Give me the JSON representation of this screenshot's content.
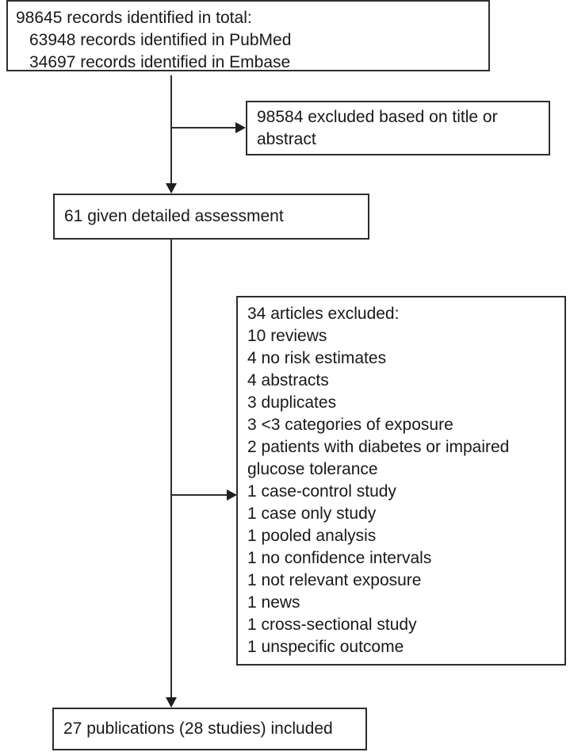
{
  "colors": {
    "background": "#fefefe",
    "box_fill": "#ffffff",
    "box_border": "#2e2e2e",
    "text": "#191919",
    "connector": "#2e2e2e"
  },
  "boxes": {
    "records_identified": {
      "lines": [
        "98645 records identified in total:",
        "63948 records identified in PubMed",
        "34697 records identified in Embase"
      ]
    },
    "excluded_title_abstract": {
      "text": "98584 excluded based on title or abstract"
    },
    "detailed_assessment": {
      "text": "61 given detailed assessment"
    },
    "articles_excluded": {
      "lines": [
        "34 articles excluded:",
        "10 reviews",
        "4 no risk estimates",
        "4 abstracts",
        "3 duplicates",
        "3 <3 categories of exposure",
        "2 patients with diabetes or impaired",
        "glucose tolerance",
        "1 case-control study",
        "1 case only study",
        "1 pooled analysis",
        "1 no confidence intervals",
        "1 not relevant exposure",
        "1 news",
        "1 cross-sectional study",
        "1 unspecific outcome"
      ]
    },
    "publications_included": {
      "text": "27 publications (28 studies) included"
    }
  }
}
